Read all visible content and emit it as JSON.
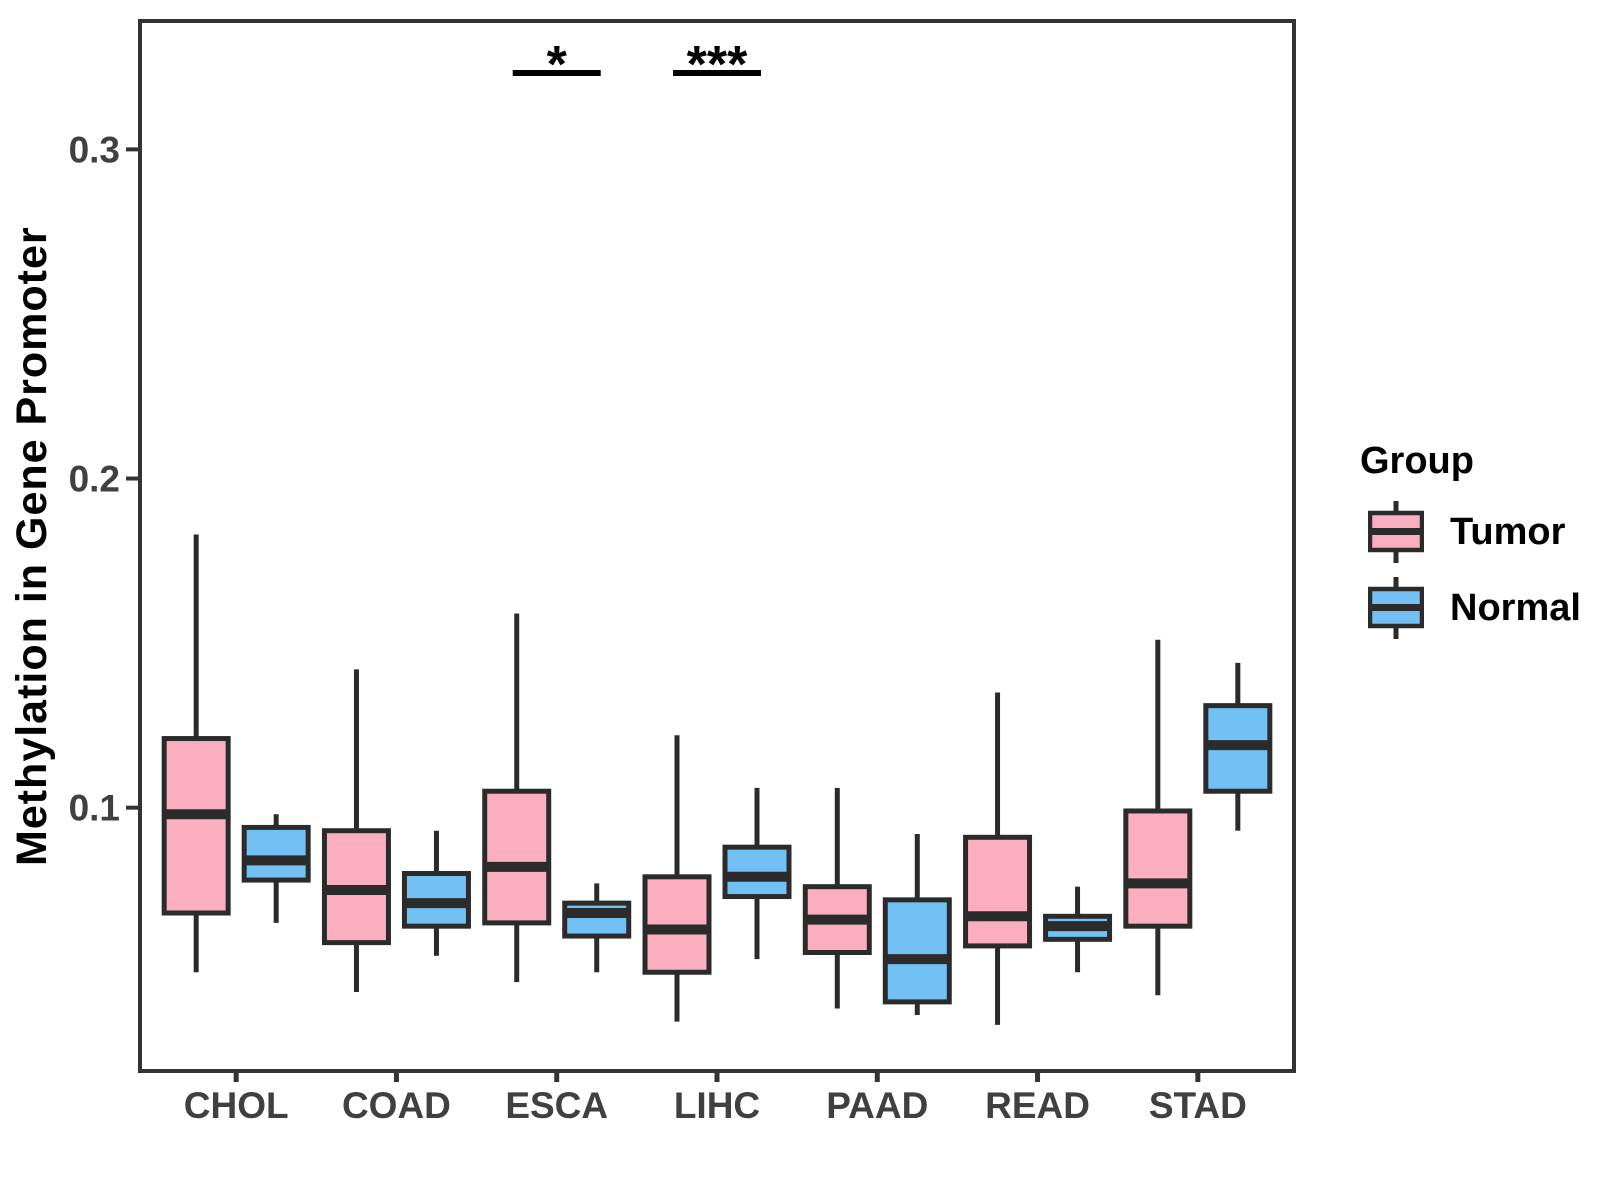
{
  "chart_data": {
    "type": "boxplot",
    "title": "",
    "xlabel": "",
    "ylabel": "Methylation in Gene Promoter",
    "categories": [
      "CHOL",
      "COAD",
      "ESCA",
      "LIHC",
      "PAAD",
      "READ",
      "STAD"
    ],
    "series": [
      {
        "name": "Tumor",
        "color": "#FBAEC0",
        "data": [
          {
            "min": 0.05,
            "q1": 0.068,
            "med": 0.098,
            "q3": 0.121,
            "max": 0.183
          },
          {
            "min": 0.044,
            "q1": 0.059,
            "med": 0.075,
            "q3": 0.093,
            "max": 0.142
          },
          {
            "min": 0.047,
            "q1": 0.065,
            "med": 0.082,
            "q3": 0.105,
            "max": 0.159
          },
          {
            "min": 0.035,
            "q1": 0.05,
            "med": 0.063,
            "q3": 0.079,
            "max": 0.122
          },
          {
            "min": 0.039,
            "q1": 0.056,
            "med": 0.066,
            "q3": 0.076,
            "max": 0.106
          },
          {
            "min": 0.034,
            "q1": 0.058,
            "med": 0.067,
            "q3": 0.091,
            "max": 0.135
          },
          {
            "min": 0.043,
            "q1": 0.064,
            "med": 0.077,
            "q3": 0.099,
            "max": 0.151
          }
        ]
      },
      {
        "name": "Normal",
        "color": "#73C0F4",
        "data": [
          {
            "min": 0.065,
            "q1": 0.078,
            "med": 0.084,
            "q3": 0.094,
            "max": 0.098
          },
          {
            "min": 0.055,
            "q1": 0.064,
            "med": 0.071,
            "q3": 0.08,
            "max": 0.093
          },
          {
            "min": 0.05,
            "q1": 0.061,
            "med": 0.068,
            "q3": 0.071,
            "max": 0.077
          },
          {
            "min": 0.054,
            "q1": 0.073,
            "med": 0.079,
            "q3": 0.088,
            "max": 0.106
          },
          {
            "min": 0.037,
            "q1": 0.041,
            "med": 0.054,
            "q3": 0.072,
            "max": 0.092
          },
          {
            "min": 0.05,
            "q1": 0.06,
            "med": 0.064,
            "q3": 0.067,
            "max": 0.076
          },
          {
            "min": 0.093,
            "q1": 0.105,
            "med": 0.119,
            "q3": 0.131,
            "max": 0.144
          }
        ]
      }
    ],
    "significance": [
      {
        "category": "ESCA",
        "label": "*"
      },
      {
        "category": "LIHC",
        "label": "***"
      }
    ],
    "yticks": [
      {
        "value": 0.1,
        "label": "0.1"
      },
      {
        "value": 0.2,
        "label": "0.2"
      },
      {
        "value": 0.3,
        "label": "0.3"
      }
    ],
    "ylim": [
      0.02,
      0.339
    ],
    "grid": false,
    "legend": {
      "title": "Group",
      "position": "right"
    },
    "colors": {
      "box_stroke": "#2B2B2B",
      "axis_line": "#333333",
      "axis_text": "#404040",
      "significance": "#000000"
    }
  }
}
